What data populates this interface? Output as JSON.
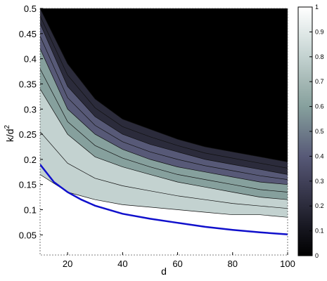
{
  "chart_data": {
    "type": "heatmap",
    "title": "",
    "xlabel": "d",
    "ylabel": "k/d",
    "ylabel_superscript": "2",
    "xlim": [
      10,
      100
    ],
    "ylim": [
      0.01,
      0.5
    ],
    "x_ticks": [
      20,
      40,
      60,
      80,
      100
    ],
    "y_ticks": [
      0.05,
      0.1,
      0.15,
      0.2,
      0.25,
      0.3,
      0.35,
      0.4,
      0.45,
      0.5
    ],
    "x_tick_labels": [
      "20",
      "40",
      "60",
      "80",
      "100"
    ],
    "y_tick_labels": [
      "0.05",
      "0.1",
      "0.15",
      "0.2",
      "0.25",
      "0.3",
      "0.35",
      "0.4",
      "0.45",
      "0.5"
    ],
    "colorbar": {
      "range": [
        0,
        1
      ],
      "ticks": [
        0,
        0.1,
        0.2,
        0.3,
        0.4,
        0.5,
        0.6,
        0.7,
        0.8,
        0.9,
        1
      ],
      "tick_labels": [
        "0",
        "0.1",
        "0.2",
        "0.3",
        "0.4",
        "0.5",
        "0.6",
        "0.7",
        "0.8",
        "0.9",
        "1"
      ],
      "colormap": "bone",
      "colors": [
        "#000000",
        "#14141c",
        "#2b2b3b",
        "#414159",
        "#575977",
        "#6f7d8a",
        "#86a09d",
        "#a5b8b5",
        "#c3d2d0",
        "#e1e9e8",
        "#ffffff"
      ]
    },
    "contour_levels": [
      0.1,
      0.2,
      0.3,
      0.4,
      0.5,
      0.6,
      0.7,
      0.8,
      0.9
    ],
    "level_boundaries": [
      {
        "level": 0.9,
        "x": [
          10,
          20,
          30,
          40,
          50,
          60,
          70,
          80,
          90,
          100
        ],
        "y": [
          0.17,
          0.135,
          0.12,
          0.11,
          0.105,
          0.1,
          0.095,
          0.09,
          0.09,
          0.085
        ]
      },
      {
        "level": 0.7,
        "x": [
          10,
          20,
          30,
          40,
          50,
          60,
          70,
          80,
          90,
          100
        ],
        "y": [
          0.34,
          0.25,
          0.205,
          0.185,
          0.17,
          0.155,
          0.145,
          0.135,
          0.125,
          0.12
        ]
      },
      {
        "level": 0.5,
        "x": [
          10,
          20,
          30,
          40,
          50,
          60,
          70,
          80,
          90,
          100
        ],
        "y": [
          0.42,
          0.3,
          0.25,
          0.22,
          0.2,
          0.185,
          0.175,
          0.165,
          0.155,
          0.15
        ]
      },
      {
        "level": 0.3,
        "x": [
          10,
          20,
          30,
          40,
          50,
          60,
          70,
          80,
          90,
          100
        ],
        "y": [
          0.47,
          0.345,
          0.285,
          0.25,
          0.23,
          0.215,
          0.2,
          0.19,
          0.18,
          0.17
        ]
      },
      {
        "level": 0.1,
        "x": [
          10,
          20,
          30,
          40,
          50,
          60,
          70,
          80,
          90,
          100
        ],
        "y": [
          0.5,
          0.39,
          0.32,
          0.28,
          0.26,
          0.24,
          0.225,
          0.215,
          0.205,
          0.195
        ]
      }
    ],
    "series": [
      {
        "color": "#1010cc",
        "x": [
          10,
          15,
          20,
          25,
          30,
          40,
          50,
          60,
          70,
          80,
          90,
          100
        ],
        "y": [
          0.19,
          0.155,
          0.135,
          0.12,
          0.108,
          0.092,
          0.082,
          0.074,
          0.066,
          0.06,
          0.055,
          0.051
        ]
      }
    ]
  }
}
